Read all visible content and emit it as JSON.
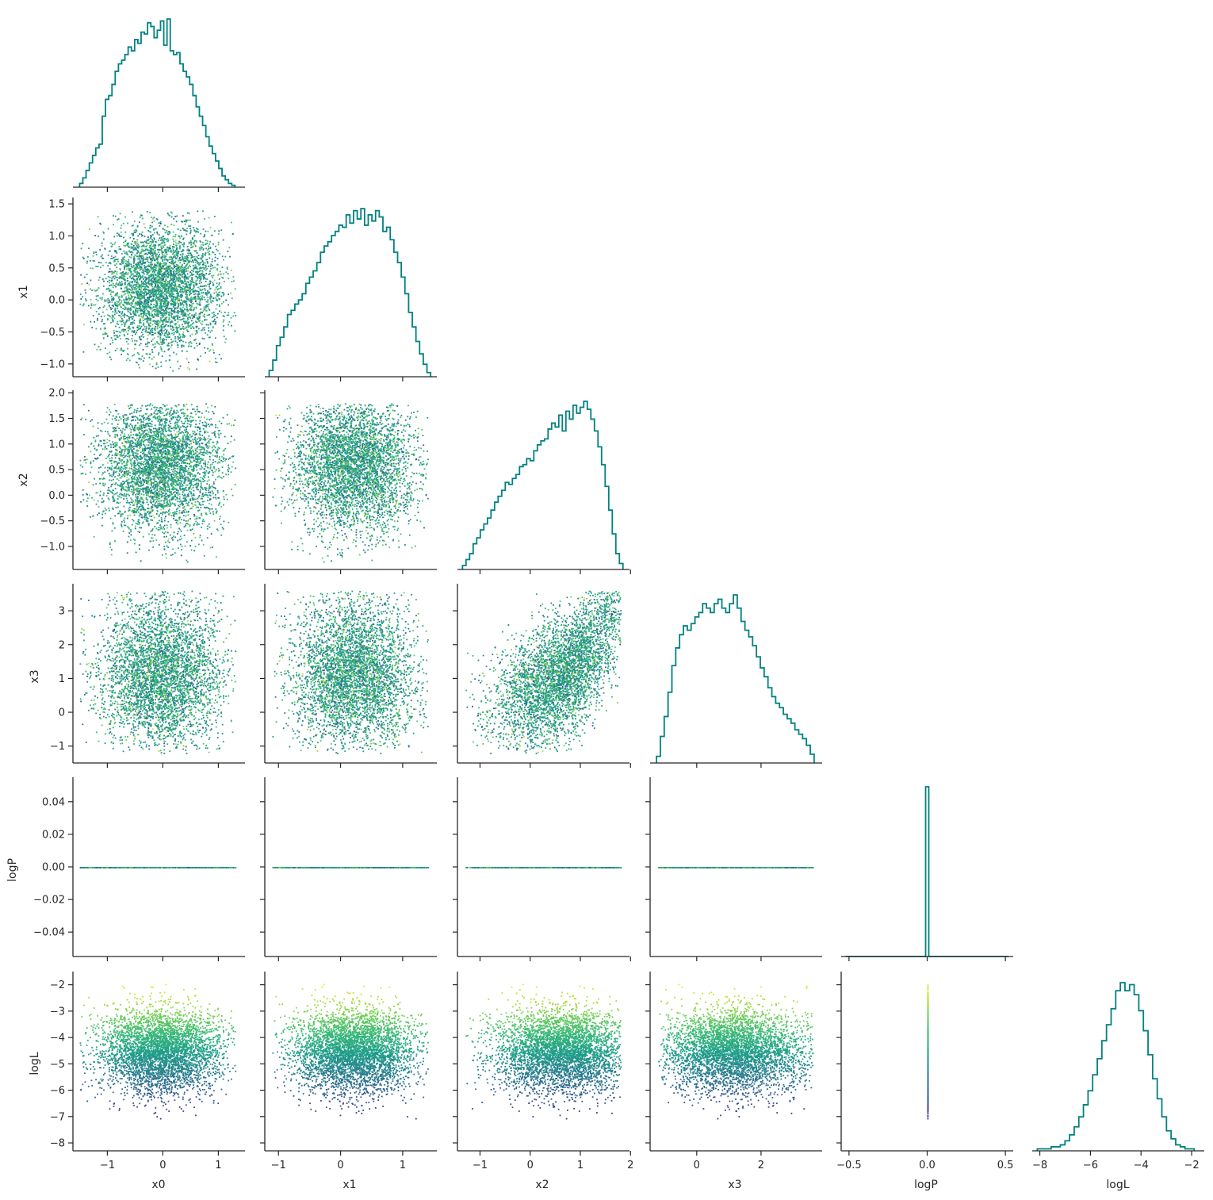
{
  "chart_data": {
    "type": "scatter",
    "variables": [
      "x0",
      "x1",
      "x2",
      "x3",
      "logP",
      "logL"
    ],
    "layout": "corner pair plot (lower triangle scatter, diagonal step histograms)",
    "hist_color": "#008080",
    "colormap": "viridis",
    "color_by": "logL",
    "points_per_panel": 8000,
    "axes": {
      "x0": {
        "lim": [
          -1.62,
          1.48
        ],
        "ticks": [
          -1,
          0,
          1
        ],
        "tick_labels": [
          "−1",
          "0",
          "1"
        ]
      },
      "x1": {
        "lim": [
          -1.22,
          1.55
        ],
        "ticks": [
          -1,
          0,
          1
        ],
        "tick_labels": [
          "−1",
          "0",
          "1"
        ]
      },
      "x2": {
        "lim": [
          -1.45,
          1.98
        ],
        "ticks": [
          -1,
          0,
          1,
          2
        ],
        "tick_labels": [
          "−1",
          "0",
          "1",
          "2"
        ]
      },
      "x3": {
        "lim": [
          -1.45,
          3.9
        ],
        "ticks": [
          0,
          2
        ],
        "tick_labels": [
          "0",
          "2"
        ],
        "ylim": [
          -1.5,
          3.8
        ],
        "yticks": [
          -1,
          0,
          1,
          2,
          3
        ],
        "ytick_labels": [
          "−1",
          "0",
          "1",
          "2",
          "3"
        ]
      },
      "logP": {
        "lim": [
          -0.055,
          0.055
        ],
        "ticks": [
          -0.5,
          0,
          0.5
        ],
        "tick_labels": [
          "−0.5",
          "0.0",
          "0.5"
        ],
        "xlim": [
          -0.55,
          0.55
        ],
        "yticks": [
          -0.04,
          -0.02,
          0,
          0.02,
          0.04
        ],
        "ytick_labels": [
          "−0.04",
          "−0.02",
          "0.00",
          "0.02",
          "0.04"
        ]
      },
      "logL": {
        "lim": [
          -8.3,
          -1.5
        ],
        "ticks": [
          -8,
          -6,
          -4,
          -2
        ],
        "tick_labels": [
          "−8",
          "−6",
          "−4",
          "−2"
        ],
        "yticks": [
          -8,
          -7,
          -6,
          -5,
          -4,
          -3,
          -2
        ],
        "ytick_labels": [
          "−8",
          "−7",
          "−6",
          "−5",
          "−4",
          "−3",
          "−2"
        ]
      }
    },
    "y_tick_overrides": {
      "x1": {
        "lim": [
          -1.2,
          1.6
        ],
        "ticks": [
          -1.0,
          -0.5,
          0.0,
          0.5,
          1.0,
          1.5
        ],
        "tick_labels": [
          "−1.0",
          "−0.5",
          "0.0",
          "0.5",
          "1.0",
          "1.5"
        ]
      },
      "x2": {
        "lim": [
          -1.45,
          2.05
        ],
        "ticks": [
          -1.0,
          -0.5,
          0.0,
          0.5,
          1.0,
          1.5,
          2.0
        ],
        "tick_labels": [
          "−1.0",
          "−0.5",
          "0.0",
          "0.5",
          "1.0",
          "1.5",
          "2.0"
        ]
      }
    },
    "histograms": {
      "x0": {
        "range": [
          -1.5,
          1.3
        ],
        "counts": [
          2,
          5,
          9,
          13,
          17,
          21,
          23,
          38,
          47,
          49,
          55,
          62,
          66,
          68,
          71,
          75,
          73,
          79,
          77,
          83,
          82,
          88,
          86,
          80,
          84,
          89,
          76,
          90,
          73,
          71,
          72,
          66,
          62,
          59,
          55,
          49,
          43,
          38,
          33,
          27,
          22,
          18,
          14,
          10,
          6,
          4,
          2,
          1
        ]
      },
      "x1": {
        "range": [
          -1.15,
          1.45
        ],
        "counts": [
          3,
          8,
          15,
          19,
          24,
          30,
          32,
          35,
          37,
          40,
          45,
          48,
          51,
          55,
          60,
          63,
          65,
          68,
          70,
          73,
          72,
          78,
          74,
          80,
          76,
          81,
          73,
          78,
          75,
          80,
          77,
          70,
          72,
          66,
          60,
          55,
          48,
          40,
          31,
          24,
          17,
          11,
          6,
          2
        ]
      },
      "x2": {
        "range": [
          -1.35,
          1.85
        ],
        "counts": [
          2,
          5,
          8,
          13,
          16,
          20,
          23,
          26,
          30,
          34,
          37,
          40,
          44,
          43,
          46,
          48,
          52,
          53,
          56,
          55,
          60,
          63,
          65,
          66,
          71,
          74,
          72,
          78,
          70,
          80,
          76,
          83,
          79,
          82,
          85,
          81,
          76,
          70,
          62,
          53,
          42,
          30,
          18,
          8,
          3
        ]
      },
      "x3": {
        "range": [
          -1.25,
          3.65
        ],
        "counts": [
          3,
          12,
          21,
          32,
          44,
          52,
          58,
          62,
          60,
          63,
          66,
          68,
          72,
          70,
          68,
          72,
          74,
          70,
          68,
          72,
          76,
          70,
          64,
          60,
          57,
          53,
          48,
          43,
          39,
          34,
          30,
          27,
          25,
          22,
          20,
          18,
          15,
          13,
          11,
          8,
          4
        ]
      },
      "logP": {
        "range": [
          -0.52,
          0.52
        ],
        "bar_at": 0.0,
        "bar_width": 0.02
      },
      "logL": {
        "range": [
          -8.1,
          -1.9
        ],
        "counts": [
          1,
          1,
          1,
          2,
          2,
          3,
          5,
          8,
          12,
          17,
          23,
          30,
          38,
          46,
          55,
          63,
          71,
          80,
          84,
          80,
          83,
          78,
          70,
          60,
          48,
          36,
          26,
          17,
          10,
          6,
          3,
          2,
          1,
          1
        ]
      }
    },
    "xlabel_row": [
      "x0",
      "x1",
      "x2",
      "x3",
      "logP",
      "logL"
    ],
    "ylabel_col": [
      "",
      "x1",
      "x2",
      "x3",
      "logP",
      "logL"
    ]
  }
}
